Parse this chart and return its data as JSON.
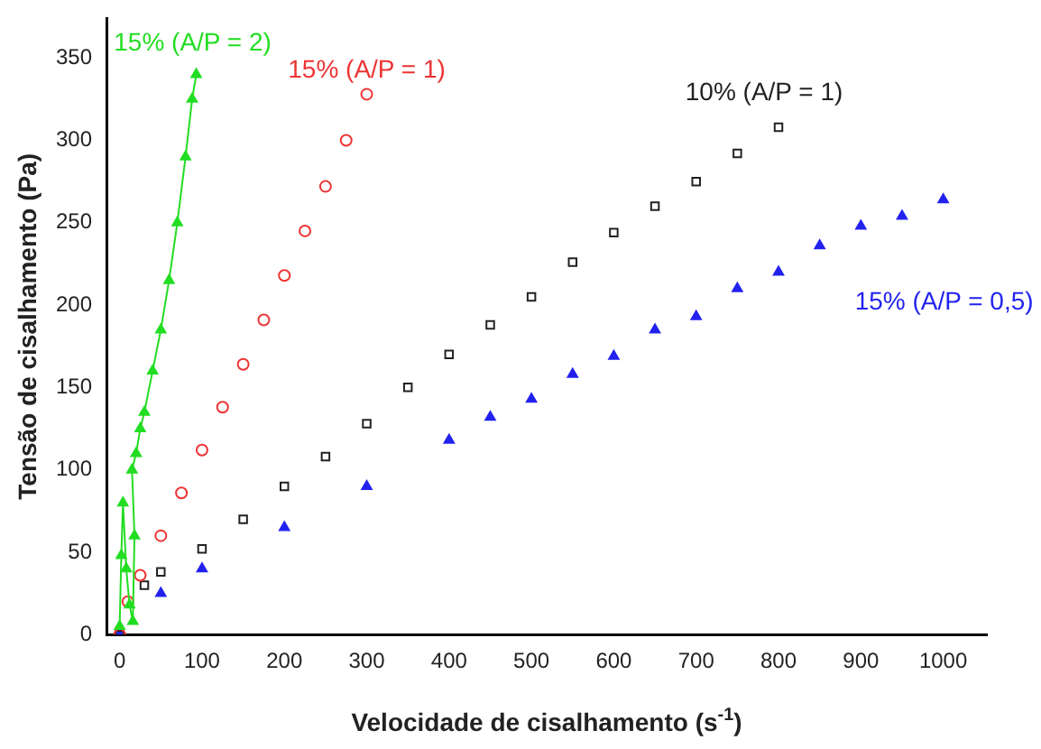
{
  "chart_data": {
    "type": "scatter",
    "xlabel": "Velocidade de cisalhamento (s$^{-1}$)",
    "ylabel": "Tensão de cisalhamento (Pa)",
    "xlim": [
      -16,
      1053
    ],
    "ylim": [
      0,
      374
    ],
    "xticks": [
      0,
      100,
      200,
      300,
      400,
      500,
      600,
      700,
      800,
      900,
      1000
    ],
    "yticks": [
      0,
      50,
      100,
      150,
      200,
      250,
      300,
      350
    ],
    "grid": false,
    "legend": false,
    "series": [
      {
        "name": "15% (A/P = 2)",
        "color": "#22dd22",
        "type": "line",
        "marker": "triangle",
        "x": [
          0,
          2,
          4,
          8,
          12,
          16,
          18,
          15,
          20,
          25,
          30,
          40,
          50,
          60,
          70,
          80,
          88,
          93
        ],
        "values": [
          5,
          48,
          80,
          40,
          18,
          8,
          60,
          100,
          110,
          125,
          135,
          160,
          185,
          215,
          250,
          290,
          325,
          340
        ]
      },
      {
        "name": "15% (A/P = 1)",
        "color": "#ee3333",
        "type": "scatter",
        "marker": "circle",
        "x": [
          0,
          10,
          25,
          50,
          75,
          100,
          125,
          150,
          175,
          200,
          225,
          250,
          275,
          300
        ],
        "values": [
          0,
          20,
          36,
          60,
          86,
          112,
          138,
          164,
          191,
          218,
          245,
          272,
          300,
          328
        ]
      },
      {
        "name": "10% (A/P = 1)",
        "color": "#222222",
        "type": "scatter",
        "marker": "square",
        "x": [
          0,
          10,
          30,
          50,
          100,
          150,
          200,
          250,
          300,
          350,
          400,
          450,
          500,
          550,
          600,
          650,
          700,
          750,
          800
        ],
        "values": [
          0,
          null,
          30,
          38,
          52,
          70,
          90,
          108,
          128,
          150,
          170,
          188,
          205,
          226,
          244,
          260,
          275,
          292,
          308
        ]
      },
      {
        "name": "15% (A/P = 0,5)",
        "color": "#2222ee",
        "type": "scatter",
        "marker": "triangle",
        "x": [
          0,
          10,
          50,
          100,
          200,
          300,
          400,
          500,
          600,
          700,
          800,
          900,
          1000,
          950,
          850,
          750,
          650,
          550,
          450
        ],
        "values": [
          0,
          null,
          25,
          40,
          65,
          90,
          118,
          143,
          169,
          193,
          220,
          248,
          264,
          254,
          236,
          210,
          185,
          158,
          132
        ]
      }
    ]
  }
}
